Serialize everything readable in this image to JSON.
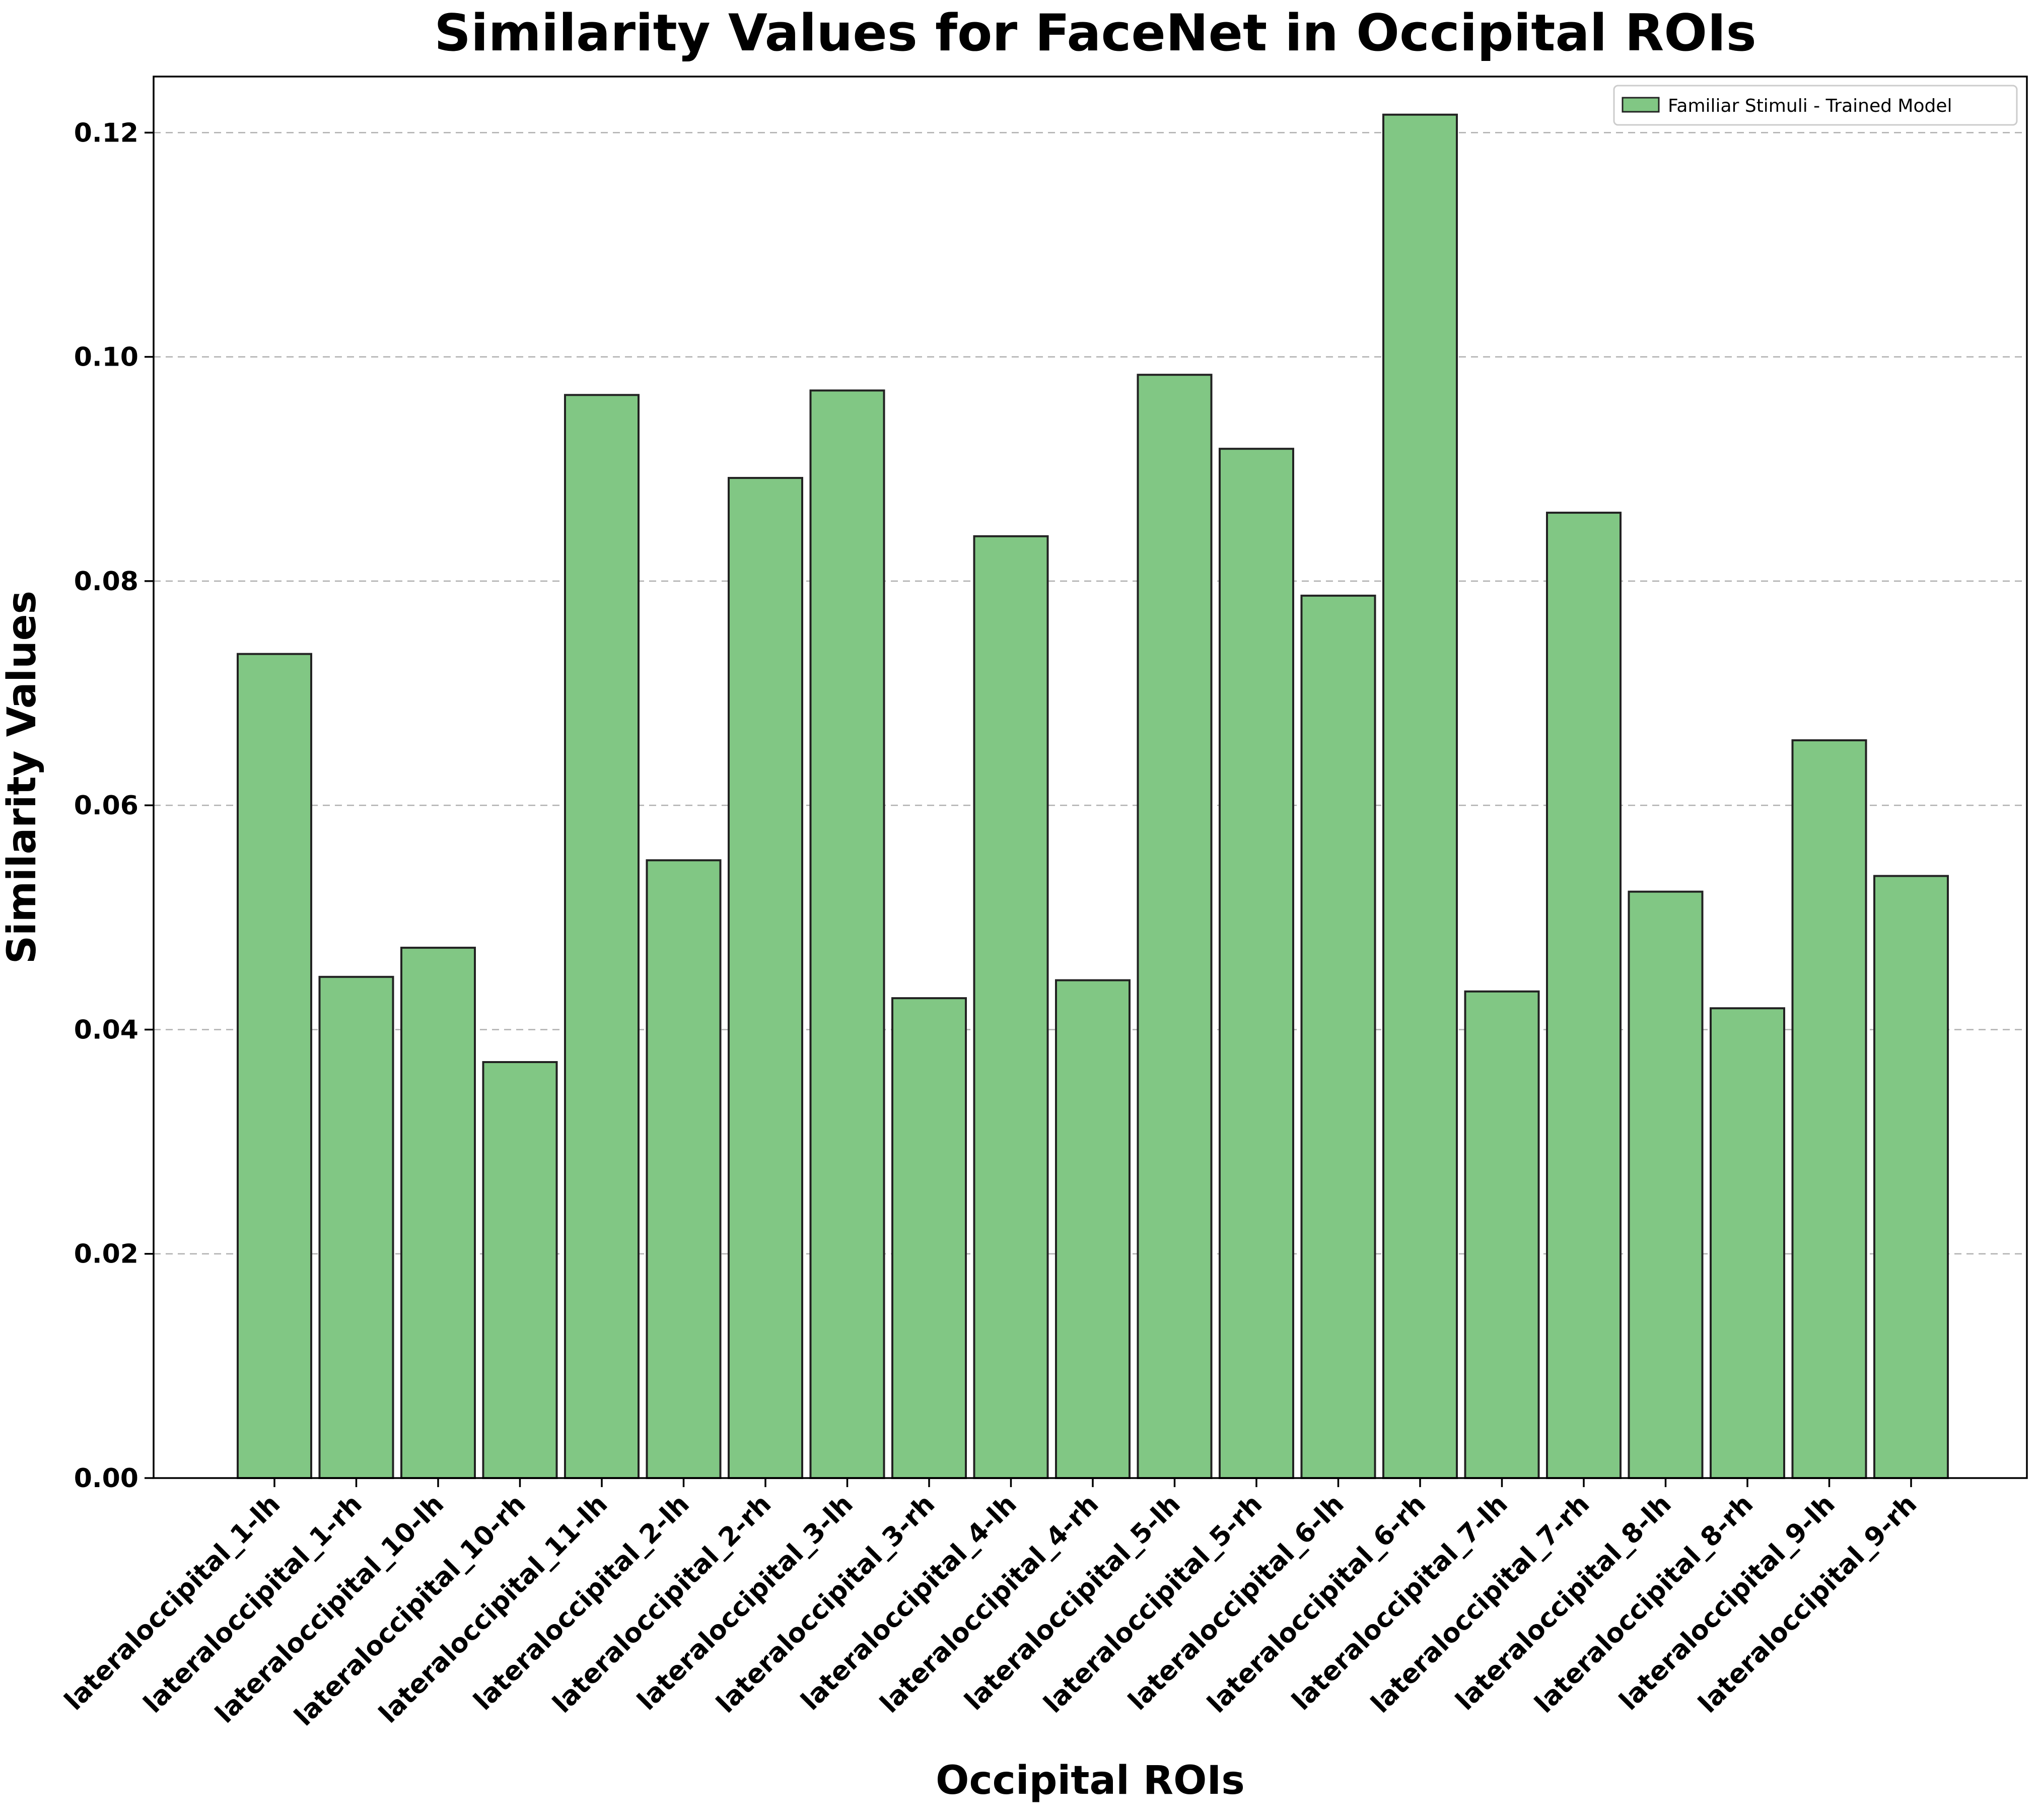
{
  "chart_data": {
    "type": "bar",
    "title": "Similarity Values for FaceNet in Occipital ROIs",
    "xlabel": "Occipital ROIs",
    "ylabel": "Similarity Values",
    "ylim": [
      0,
      0.125
    ],
    "yticks": [
      0.0,
      0.02,
      0.04,
      0.06,
      0.08,
      0.1,
      0.12
    ],
    "ytick_labels": [
      "0.00",
      "0.02",
      "0.04",
      "0.06",
      "0.08",
      "0.10",
      "0.12"
    ],
    "grid": "y-dashed",
    "legend_position": "top-right",
    "categories": [
      "lateraloccipital_1-lh",
      "lateraloccipital_1-rh",
      "lateraloccipital_10-lh",
      "lateraloccipital_10-rh",
      "lateraloccipital_11-lh",
      "lateraloccipital_2-lh",
      "lateraloccipital_2-rh",
      "lateraloccipital_3-lh",
      "lateraloccipital_3-rh",
      "lateraloccipital_4-lh",
      "lateraloccipital_4-rh",
      "lateraloccipital_5-lh",
      "lateraloccipital_5-rh",
      "lateraloccipital_6-lh",
      "lateraloccipital_6-rh",
      "lateraloccipital_7-lh",
      "lateraloccipital_7-rh",
      "lateraloccipital_8-lh",
      "lateraloccipital_8-rh",
      "lateraloccipital_9-lh",
      "lateraloccipital_9-rh"
    ],
    "series": [
      {
        "name": "Familiar Stimuli - Trained Model",
        "color": "#81c784",
        "edge_color": "#222222",
        "values": [
          0.0735,
          0.0447,
          0.0473,
          0.0371,
          0.0966,
          0.0551,
          0.0892,
          0.097,
          0.0428,
          0.084,
          0.0444,
          0.0984,
          0.0918,
          0.0787,
          0.1216,
          0.0434,
          0.0861,
          0.0523,
          0.0419,
          0.0658,
          0.0537
        ]
      }
    ]
  }
}
